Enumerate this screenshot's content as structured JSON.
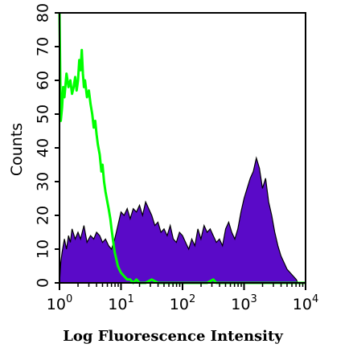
{
  "chart_data": {
    "type": "area",
    "title": "",
    "xlabel": "Log Fluorescence Intensity",
    "ylabel": "Counts",
    "x_scale": "log",
    "xlim": [
      1,
      10000
    ],
    "ylim": [
      0,
      80
    ],
    "x_ticks": [
      {
        "value": 1,
        "base": "10",
        "exp": "0"
      },
      {
        "value": 10,
        "base": "10",
        "exp": "1"
      },
      {
        "value": 100,
        "base": "10",
        "exp": "2"
      },
      {
        "value": 1000,
        "base": "10",
        "exp": "3"
      },
      {
        "value": 10000,
        "base": "10",
        "exp": "4"
      }
    ],
    "y_ticks": [
      "0",
      "10",
      "20",
      "30",
      "40",
      "50",
      "60",
      "70",
      "80"
    ],
    "grid": false,
    "series": [
      {
        "style": "filled",
        "color": "#5a0ac8",
        "x": [
          1.0,
          1.05,
          1.1,
          1.15,
          1.2,
          1.3,
          1.4,
          1.5,
          1.6,
          1.8,
          2.0,
          2.2,
          2.5,
          2.8,
          3.2,
          3.6,
          4.0,
          4.5,
          5.0,
          5.6,
          6.3,
          7.0,
          7.9,
          8.9,
          10.0,
          11.2,
          12.6,
          14.1,
          15.8,
          17.8,
          20.0,
          22.4,
          25.1,
          28.2,
          31.6,
          35.5,
          39.8,
          44.7,
          50.1,
          56.2,
          63.1,
          70.8,
          79.4,
          89.1,
          100.0,
          112.2,
          125.9,
          141.3,
          158.5,
          177.8,
          199.5,
          223.9,
          251.2,
          281.8,
          316.2,
          354.8,
          398.1,
          446.7,
          501.2,
          562.3,
          631.0,
          707.9,
          794.3,
          891.3,
          1000.0,
          1122.0,
          1259.0,
          1413.0,
          1585.0,
          1778.0,
          1995.0,
          2239.0,
          2512.0,
          2818.0,
          3162.0,
          3548.0,
          3981.0,
          4467.0,
          5012.0,
          5623.0,
          6310.0,
          7079.0,
          7500.0
        ],
        "y": [
          0,
          6,
          9,
          11,
          13,
          10,
          14,
          12,
          16,
          13,
          15,
          13,
          17,
          12,
          14,
          13,
          15,
          14,
          12,
          13,
          11,
          10,
          13,
          17,
          21,
          20,
          22,
          19,
          22,
          21,
          23,
          20,
          24,
          22,
          20,
          17,
          18,
          15,
          16,
          14,
          17,
          13,
          12,
          15,
          14,
          12,
          10,
          13,
          11,
          16,
          13,
          17,
          15,
          16,
          14,
          12,
          13,
          11,
          16,
          18,
          15,
          13,
          16,
          21,
          25,
          28,
          31,
          33,
          37,
          34,
          28,
          31,
          24,
          20,
          15,
          11,
          8,
          6,
          4,
          3,
          2,
          1,
          0
        ]
      },
      {
        "style": "line",
        "color": "#00ff00",
        "x": [
          1.0,
          1.05,
          1.1,
          1.15,
          1.2,
          1.3,
          1.4,
          1.5,
          1.6,
          1.7,
          1.8,
          1.9,
          2.0,
          2.1,
          2.2,
          2.3,
          2.4,
          2.5,
          2.6,
          2.8,
          3.0,
          3.2,
          3.4,
          3.6,
          3.8,
          4.0,
          4.2,
          4.5,
          4.8,
          5.0,
          5.3,
          5.6,
          6.0,
          6.3,
          6.7,
          7.0,
          7.5,
          7.9,
          8.4,
          8.9,
          9.4,
          10.0,
          11.2,
          12.6,
          14.1,
          15.8,
          17.8,
          20.0,
          25.1,
          31.6,
          39.8,
          50.1,
          63.1,
          79.4,
          100.0,
          125.9,
          158.5,
          199.5,
          251.2,
          316.2,
          354.8,
          398.1,
          501.2,
          631.0,
          794.3,
          1000.0,
          10000.0
        ],
        "y": [
          80,
          48,
          52,
          58,
          55,
          62,
          58,
          60,
          56,
          58,
          61,
          57,
          60,
          66,
          63,
          69,
          62,
          58,
          60,
          55,
          57,
          53,
          50,
          46,
          48,
          44,
          41,
          38,
          33,
          35,
          30,
          27,
          24,
          22,
          19,
          16,
          12,
          9,
          7,
          5,
          4,
          3,
          2,
          1,
          1,
          0,
          1,
          0,
          0,
          1,
          0,
          0,
          0,
          0,
          0,
          0,
          0,
          0,
          0,
          1,
          0,
          0,
          0,
          0,
          0,
          0,
          0
        ]
      }
    ]
  }
}
